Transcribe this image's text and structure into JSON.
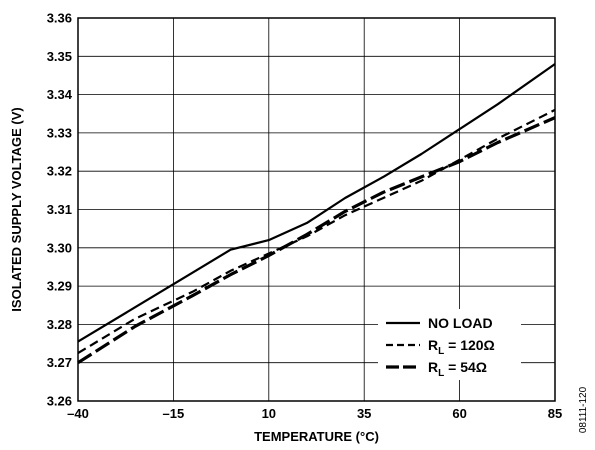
{
  "chart_data": {
    "type": "line",
    "xlabel": "TEMPERATURE (°C)",
    "ylabel": "ISOLATED SUPPLY VOLTAGE (V)",
    "xlim": [
      -40,
      85
    ],
    "ylim": [
      3.26,
      3.36
    ],
    "xticks": [
      -40,
      -15,
      10,
      35,
      60,
      85
    ],
    "xtick_labels": [
      "–40",
      "–15",
      "10",
      "35",
      "60",
      "85"
    ],
    "yticks": [
      3.26,
      3.27,
      3.28,
      3.29,
      3.3,
      3.31,
      3.32,
      3.33,
      3.34,
      3.35,
      3.36
    ],
    "ytick_labels": [
      "3.26",
      "3.27",
      "3.28",
      "3.29",
      "3.30",
      "3.31",
      "3.32",
      "3.33",
      "3.34",
      "3.35",
      "3.36"
    ],
    "grid": true,
    "legend_position": "bottom-right",
    "series": [
      {
        "key": "no_load",
        "legend_main": "NO LOAD",
        "legend_sub": "",
        "legend_suffix": "",
        "style": "solid",
        "x": [
          -40,
          -25,
          -10,
          0,
          10,
          20,
          30,
          40,
          50,
          60,
          70,
          85
        ],
        "y": [
          3.2755,
          3.2845,
          3.2935,
          3.2995,
          3.302,
          3.3065,
          3.313,
          3.3185,
          3.3245,
          3.331,
          3.3375,
          3.348
        ]
      },
      {
        "key": "rl_120",
        "legend_main": "R",
        "legend_sub": "L",
        "legend_suffix": " = 120Ω",
        "style": "short-dash",
        "x": [
          -40,
          -25,
          -10,
          0,
          10,
          20,
          30,
          40,
          50,
          60,
          70,
          85
        ],
        "y": [
          3.2725,
          3.2815,
          3.2885,
          3.294,
          3.2985,
          3.303,
          3.3085,
          3.313,
          3.3175,
          3.323,
          3.3285,
          3.336
        ]
      },
      {
        "key": "rl_54",
        "legend_main": "R",
        "legend_sub": "L",
        "legend_suffix": " = 54Ω",
        "style": "long-dash",
        "x": [
          -40,
          -25,
          -10,
          0,
          10,
          20,
          30,
          40,
          50,
          60,
          70,
          85
        ],
        "y": [
          3.27,
          3.2795,
          3.2875,
          3.293,
          3.298,
          3.3035,
          3.3095,
          3.3145,
          3.3185,
          3.3225,
          3.3275,
          3.334
        ]
      }
    ],
    "figure_id": "08111-120"
  }
}
